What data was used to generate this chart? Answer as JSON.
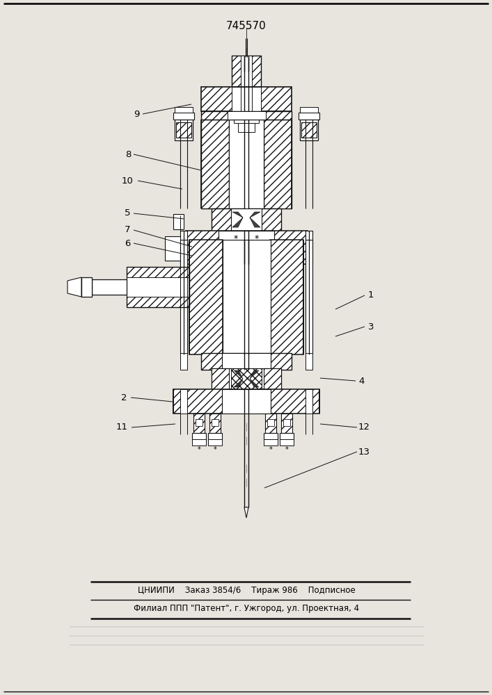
{
  "title": "745570",
  "footer_line1": "ЦНИИПИ    Заказ 3854/6    Тираж 986    Подписное",
  "footer_line2": "Филиал ППП \"Патент\", г. Ужгород, ул. Проектная, 4",
  "bg_color": "#e8e4de",
  "line_color": "#111111"
}
